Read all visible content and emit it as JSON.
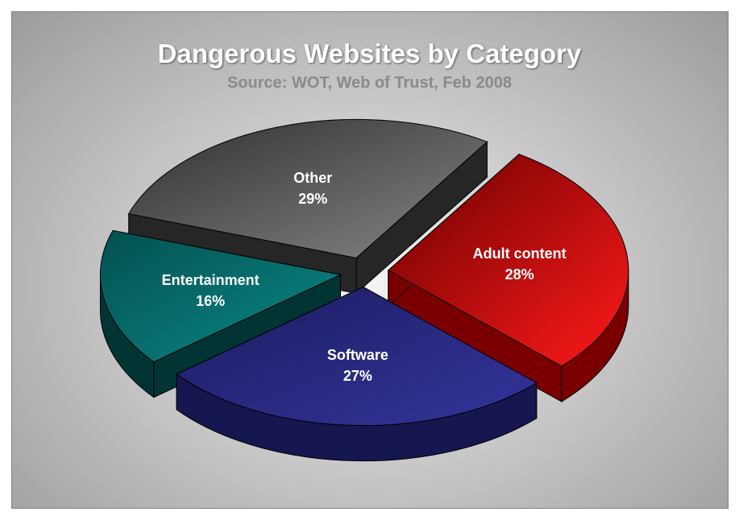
{
  "chart_data": {
    "type": "pie",
    "title": "Dangerous Websites by Category",
    "subtitle": "Source: WOT, Web of Trust, Feb 2008",
    "slices": [
      {
        "label": "Adult content",
        "value": 28,
        "value_label": "28%",
        "color_light": "#ff1a1a",
        "color_dark": "#6a0000",
        "side": "#7a0000"
      },
      {
        "label": "Software",
        "value": 27,
        "value_label": "27%",
        "color_light": "#34349c",
        "color_dark": "#1c1c60",
        "side": "#161650"
      },
      {
        "label": "Entertainment",
        "value": 16,
        "value_label": "16%",
        "color_light": "#0a8a88",
        "color_dark": "#045050",
        "side": "#023434"
      },
      {
        "label": "Other",
        "value": 29,
        "value_label": "29%",
        "color_light": "#868686",
        "color_dark": "#303030",
        "side": "#262626"
      }
    ]
  }
}
